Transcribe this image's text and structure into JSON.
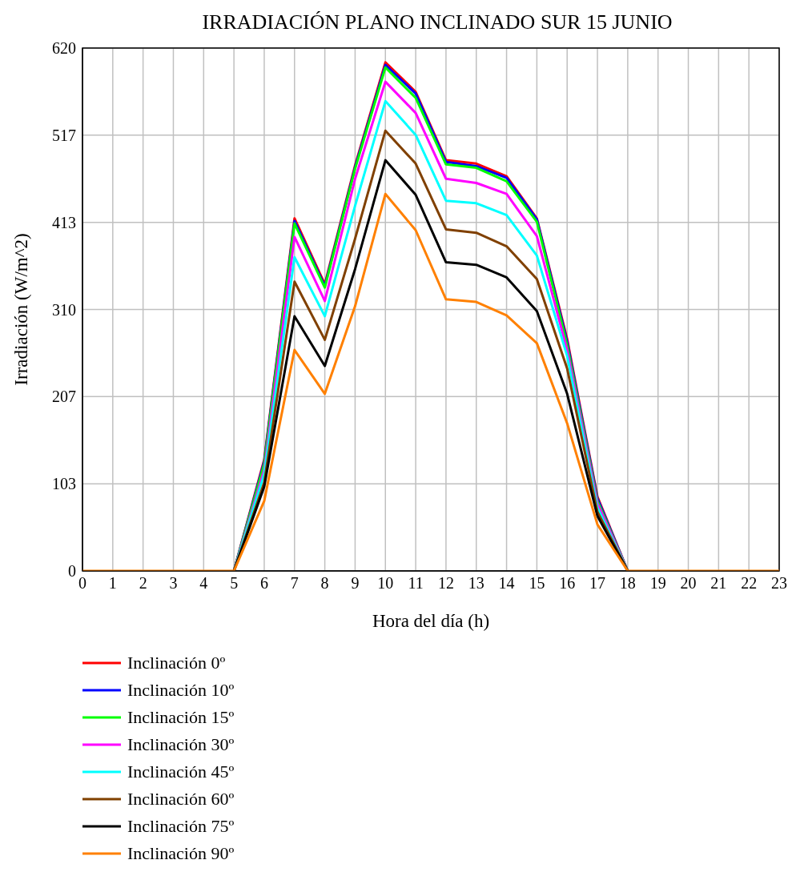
{
  "chart_data": {
    "type": "line",
    "title": "IRRADIACIÓN PLANO INCLINADO SUR 15 JUNIO",
    "xlabel": "Hora del día (h)",
    "ylabel": "Irradiación (W/m^2)",
    "x": [
      0,
      1,
      2,
      3,
      4,
      5,
      6,
      7,
      8,
      9,
      10,
      11,
      12,
      13,
      14,
      15,
      16,
      17,
      18,
      19,
      20,
      21,
      22,
      23
    ],
    "xlim": [
      0,
      23
    ],
    "xticks": [
      0,
      1,
      2,
      3,
      4,
      5,
      6,
      7,
      8,
      9,
      10,
      11,
      12,
      13,
      14,
      15,
      16,
      17,
      18,
      19,
      20,
      21,
      22,
      23
    ],
    "ylim": [
      0,
      620
    ],
    "yticks": [
      0,
      {
        "value": 103.33,
        "label": "103"
      },
      {
        "value": 206.67,
        "label": "207"
      },
      310,
      {
        "value": 413.33,
        "label": "413"
      },
      {
        "value": 516.67,
        "label": "517"
      },
      620
    ],
    "grid": true,
    "legend": "bottom left",
    "marker": "none",
    "line_style": "solid",
    "series": [
      {
        "name": "Inclinación 0º",
        "color": "#ff0000",
        "values": [
          null,
          null,
          null,
          null,
          null,
          0,
          132,
          418,
          340,
          481,
          603,
          568,
          487,
          483,
          468,
          418,
          275,
          88,
          0,
          null,
          null,
          null,
          null,
          null
        ]
      },
      {
        "name": "Inclinación 10º",
        "color": "#0000ff",
        "values": [
          null,
          null,
          null,
          null,
          null,
          0,
          130,
          415,
          338,
          479,
          600,
          566,
          485,
          480,
          466,
          417,
          272,
          86,
          0,
          null,
          null,
          null,
          null,
          null
        ]
      },
      {
        "name": "Inclinación 15º",
        "color": "#00ff00",
        "values": [
          null,
          null,
          null,
          null,
          null,
          0,
          127,
          412,
          336,
          477,
          597,
          561,
          482,
          478,
          462,
          414,
          268,
          83,
          0,
          null,
          null,
          null,
          null,
          null
        ]
      },
      {
        "name": "Inclinación 30º",
        "color": "#ff00ff",
        "values": [
          null,
          null,
          null,
          null,
          null,
          0,
          120,
          396,
          320,
          465,
          580,
          543,
          465,
          460,
          447,
          397,
          262,
          80,
          0,
          null,
          null,
          null,
          null,
          null
        ]
      },
      {
        "name": "Inclinación 45º",
        "color": "#00ffff",
        "values": [
          null,
          null,
          null,
          null,
          null,
          0,
          115,
          372,
          302,
          433,
          557,
          517,
          439,
          436,
          422,
          374,
          255,
          75,
          0,
          null,
          null,
          null,
          null,
          null
        ]
      },
      {
        "name": "Inclinación 60º",
        "color": "#804000",
        "values": [
          null,
          null,
          null,
          null,
          null,
          0,
          105,
          343,
          274,
          394,
          522,
          483,
          405,
          401,
          385,
          346,
          240,
          70,
          0,
          null,
          null,
          null,
          null,
          null
        ]
      },
      {
        "name": "Inclinación 75º",
        "color": "#000000",
        "values": [
          null,
          null,
          null,
          null,
          null,
          0,
          100,
          302,
          243,
          358,
          487,
          446,
          366,
          363,
          348,
          308,
          210,
          65,
          0,
          null,
          null,
          null,
          null,
          null
        ]
      },
      {
        "name": "Inclinación 90º",
        "color": "#ff8000",
        "values": [
          0,
          0,
          0,
          0,
          0,
          0,
          83,
          262,
          210,
          314,
          447,
          404,
          322,
          319,
          303,
          270,
          175,
          55,
          0,
          0,
          0,
          0,
          0,
          0
        ]
      }
    ]
  }
}
